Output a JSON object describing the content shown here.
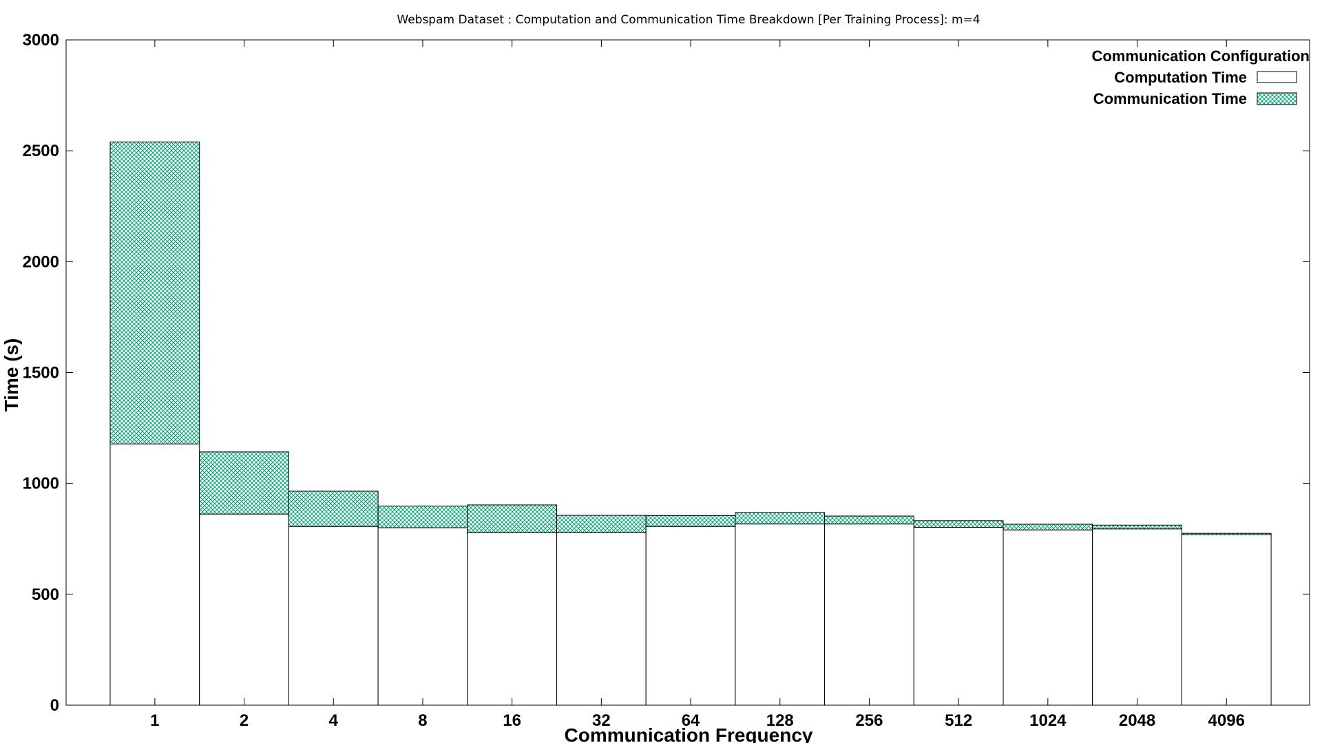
{
  "chart_data": {
    "type": "bar",
    "stacked": true,
    "title": "Webspam Dataset : Computation and Communication Time Breakdown [Per Training Process]: m=4",
    "xlabel": "Communication Frequency",
    "ylabel": "Time (s)",
    "ylim": [
      0,
      3000
    ],
    "yticks": [
      0,
      500,
      1000,
      1500,
      2000,
      2500,
      3000
    ],
    "categories": [
      "1",
      "2",
      "4",
      "8",
      "16",
      "32",
      "64",
      "128",
      "256",
      "512",
      "1024",
      "2048",
      "4096"
    ],
    "series": [
      {
        "name": "Computation Time",
        "color": "#ffffff",
        "values": [
          1178,
          862,
          806,
          800,
          778,
          778,
          806,
          817,
          817,
          802,
          790,
          795,
          768
        ]
      },
      {
        "name": "Communication Time",
        "color": "#009e73",
        "pattern": "crosshatch",
        "values": [
          1362,
          280,
          159,
          98,
          125,
          78,
          49,
          52,
          36,
          30,
          26,
          17,
          7
        ]
      }
    ],
    "legend": {
      "title": "Communication Configuration",
      "position": "top-right"
    },
    "grid": false
  }
}
